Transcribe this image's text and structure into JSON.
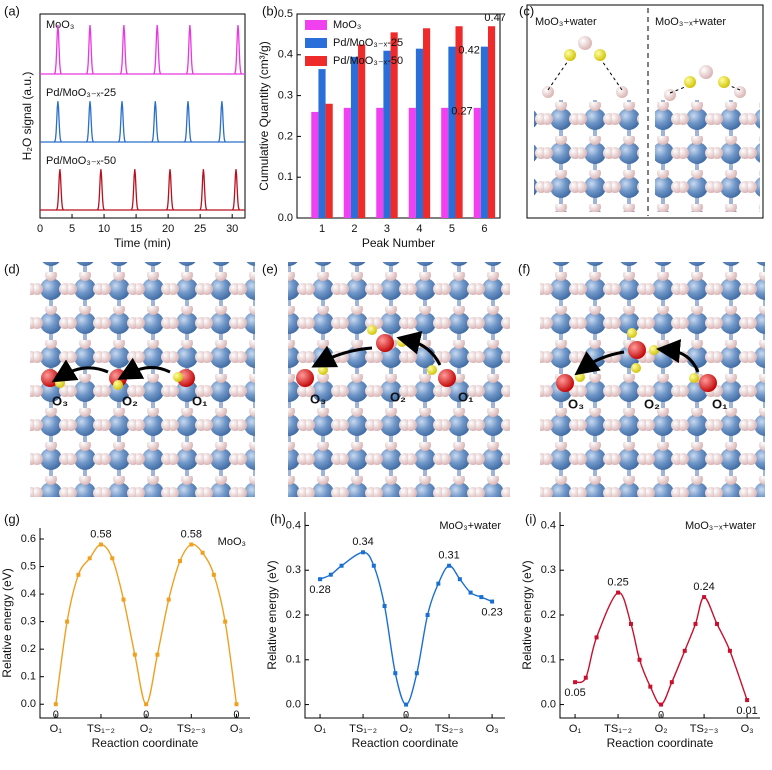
{
  "chart_data": [
    {
      "type": "peaks",
      "panel_label": "(a)",
      "x_label": "Time (min)",
      "y_label": "H₂O signal (a.u.)",
      "frame": "box",
      "xlim": [
        0,
        32
      ],
      "xticks": [
        0,
        5,
        10,
        15,
        20,
        25,
        30
      ],
      "series": [
        {
          "name": "MoO₃",
          "color": "#e838e0",
          "peaks": [
            2.8,
            7.8,
            13.1,
            18.3,
            23.4,
            30.9
          ]
        },
        {
          "name": "Pd/MoO₃₋ₓ-25",
          "color": "#2a6fc9",
          "peaks": [
            2.8,
            7.8,
            12.8,
            18.0,
            23.1,
            28.4
          ]
        },
        {
          "name": "Pd/MoO₃₋ₓ-50",
          "color": "#b8101e",
          "peaks": [
            3.1,
            9.5,
            14.8,
            20.3,
            25.5,
            30.6
          ]
        }
      ]
    },
    {
      "type": "bar",
      "panel_label": "(b)",
      "x_label": "Peak Number",
      "y_label": "Cumulative Quantity (cm³/g)",
      "frame": "box",
      "categories": [
        "1",
        "2",
        "3",
        "4",
        "5",
        "6"
      ],
      "ylim": [
        0,
        0.5
      ],
      "yticks": [
        {
          "value": 0,
          "label": "0.0"
        },
        0.1,
        0.2,
        0.3,
        0.4,
        0.5
      ],
      "series": [
        {
          "name": "MoO₃",
          "color": "#f040f0",
          "values": [
            0.26,
            0.27,
            0.27,
            0.27,
            0.27,
            0.27
          ]
        },
        {
          "name": "Pd/MoO₃₋ₓ-25",
          "color": "#2a6fd9",
          "values": [
            0.365,
            0.395,
            0.41,
            0.415,
            0.42,
            0.42
          ]
        },
        {
          "name": "Pd/MoO₃₋ₓ-50",
          "color": "#ee2a2a",
          "values": [
            0.28,
            0.425,
            0.455,
            0.465,
            0.47,
            0.47
          ]
        }
      ]
    },
    {
      "type": "line",
      "panel_label": "(g)",
      "x_label": "Reaction coordinate",
      "y_label": "Relative energy (eV)",
      "frame": "open",
      "xlim": [
        -0.35,
        4.3
      ],
      "xticks": [
        {
          "value": 0,
          "label": "O₁"
        },
        {
          "value": 1,
          "label": "TS₁₋₂"
        },
        {
          "value": 2,
          "label": "O₂"
        },
        {
          "value": 3,
          "label": "TS₂₋₃"
        },
        {
          "value": 4,
          "label": "O₃"
        }
      ],
      "ylim": [
        -0.05,
        0.64
      ],
      "yticks": [
        {
          "value": 0,
          "label": "0.0"
        },
        0.1,
        0.2,
        0.3,
        0.4,
        0.5,
        0.6
      ],
      "series": [
        {
          "name": "MoO₃",
          "color": "#f0a020",
          "x": [
            0,
            0.25,
            0.5,
            0.75,
            1,
            1.25,
            1.5,
            1.75,
            2,
            2.25,
            2.5,
            2.75,
            3,
            3.25,
            3.5,
            3.75,
            4
          ],
          "values": [
            0,
            0.3,
            0.47,
            0.53,
            0.58,
            0.53,
            0.38,
            0.18,
            0,
            0.18,
            0.38,
            0.52,
            0.58,
            0.55,
            0.47,
            0.3,
            0
          ]
        }
      ]
    },
    {
      "type": "line",
      "panel_label": "(h)",
      "x_label": "Reaction coordinate",
      "y_label": "Relative energy (eV)",
      "frame": "open",
      "xlim": [
        -0.35,
        4.3
      ],
      "xticks": [
        {
          "value": 0,
          "label": "O₁"
        },
        {
          "value": 1,
          "label": "TS₁₋₂"
        },
        {
          "value": 2,
          "label": "O₂"
        },
        {
          "value": 3,
          "label": "TS₂₋₃"
        },
        {
          "value": 4,
          "label": "O₃"
        }
      ],
      "ylim": [
        -0.03,
        0.43
      ],
      "yticks": [
        {
          "value": 0,
          "label": "0.0"
        },
        0.1,
        0.2,
        0.3,
        0.4
      ],
      "series": [
        {
          "name": "MoO₃+water",
          "color": "#1a6fd0",
          "x": [
            0,
            0.25,
            0.5,
            1,
            1.25,
            1.5,
            1.75,
            2,
            2.25,
            2.5,
            2.75,
            3,
            3.25,
            3.5,
            3.75,
            4
          ],
          "values": [
            0.28,
            0.29,
            0.31,
            0.34,
            0.31,
            0.22,
            0.07,
            0,
            0.07,
            0.2,
            0.27,
            0.31,
            0.28,
            0.25,
            0.24,
            0.23
          ]
        }
      ]
    },
    {
      "type": "line",
      "panel_label": "(i)",
      "x_label": "Reaction coordinate",
      "y_label": "Relative energy (eV)",
      "frame": "open",
      "xlim": [
        -0.35,
        4.3
      ],
      "xticks": [
        {
          "value": 0,
          "label": "O₁"
        },
        {
          "value": 1,
          "label": "TS₁₋₂"
        },
        {
          "value": 2,
          "label": "O₂"
        },
        {
          "value": 3,
          "label": "TS₂₋₃"
        },
        {
          "value": 4,
          "label": "O₃"
        }
      ],
      "ylim": [
        -0.03,
        0.43
      ],
      "yticks": [
        {
          "value": 0,
          "label": "0.0"
        },
        0.1,
        0.2,
        0.3,
        0.4
      ],
      "series": [
        {
          "name": "MoO₃₋ₓ+water",
          "color": "#c8102e",
          "x": [
            0,
            0.25,
            0.5,
            1,
            1.3,
            1.5,
            1.75,
            2,
            2.25,
            2.55,
            2.8,
            3,
            3.3,
            3.6,
            4
          ],
          "values": [
            0.05,
            0.06,
            0.15,
            0.25,
            0.18,
            0.1,
            0.04,
            0,
            0.05,
            0.12,
            0.18,
            0.24,
            0.18,
            0.12,
            0.01
          ]
        }
      ]
    }
  ],
  "structures": [
    {
      "panel_label": "(c)",
      "captions": [
        "MoO₃+water",
        "MoO₃₋ₓ+water"
      ]
    },
    {
      "panel_label": "(d)",
      "labels": [
        "O₃",
        "O₂",
        "O₁"
      ]
    },
    {
      "panel_label": "(e)",
      "labels": [
        "O₃",
        "O₂",
        "O₁"
      ]
    },
    {
      "panel_label": "(f)",
      "labels": [
        "O₃",
        "O₂",
        "O₁"
      ]
    }
  ]
}
